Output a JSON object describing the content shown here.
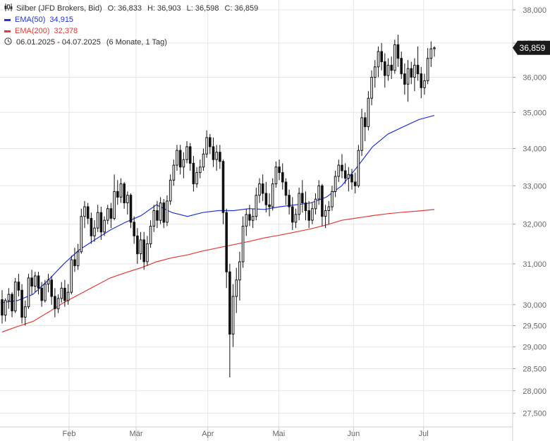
{
  "header": {
    "instrument": "Silber (JFD Brokers, Bid)",
    "open": "O: 36,833",
    "high": "H: 36,903",
    "low": "L: 36,598",
    "close": "C: 36,859",
    "ema50_label": "EMA(50)",
    "ema50_value": "34,915",
    "ema200_label": "EMA(200)",
    "ema200_value": "32,378",
    "period": "06.01.2025 - 04.07.2025",
    "period_detail": "(6 Monate, 1 Tag)",
    "candle_icon": "candlestick-icon",
    "clock_icon": "clock-icon"
  },
  "colors": {
    "candle": "#111111",
    "ema50": "#2236d8",
    "ema200": "#e53935",
    "grid": "#e6e6e6",
    "axis_text": "#666666",
    "last_price_bg": "#1a1a1a"
  },
  "chart_data": {
    "type": "candlestick",
    "y_scale": "log",
    "ylim": [
      27.2,
      38.3
    ],
    "y_ticks": [
      "27,500",
      "28,000",
      "28,500",
      "29,000",
      "29,500",
      "30,000",
      "31,000",
      "32,000",
      "33,000",
      "34,000",
      "35,000",
      "36,000",
      "37,000",
      "38,000"
    ],
    "x_tick_labels": [
      "Feb",
      "Mär",
      "Apr",
      "Mai",
      "Jun",
      "Jul"
    ],
    "last_price": "36,859",
    "grid": true,
    "candles": [
      [
        30.12,
        30.35,
        29.55,
        29.75
      ],
      [
        29.75,
        30.15,
        29.6,
        30.1
      ],
      [
        30.1,
        30.4,
        29.9,
        30.25
      ],
      [
        30.25,
        30.3,
        29.7,
        29.85
      ],
      [
        29.85,
        30.65,
        29.8,
        30.55
      ],
      [
        30.55,
        30.75,
        30.2,
        30.35
      ],
      [
        30.35,
        30.5,
        29.55,
        29.7
      ],
      [
        29.7,
        30.1,
        29.5,
        29.95
      ],
      [
        29.95,
        30.75,
        29.9,
        30.65
      ],
      [
        30.65,
        30.85,
        30.25,
        30.45
      ],
      [
        30.45,
        30.8,
        30.3,
        30.7
      ],
      [
        30.7,
        30.8,
        30.25,
        30.4
      ],
      [
        30.4,
        30.55,
        29.95,
        30.1
      ],
      [
        30.1,
        30.6,
        30.05,
        30.5
      ],
      [
        30.5,
        30.75,
        30.3,
        30.6
      ],
      [
        30.6,
        30.7,
        30.0,
        30.2
      ],
      [
        30.2,
        30.4,
        29.7,
        29.9
      ],
      [
        29.9,
        30.25,
        29.8,
        30.15
      ],
      [
        30.15,
        30.55,
        30.05,
        30.4
      ],
      [
        30.4,
        30.6,
        29.95,
        30.1
      ],
      [
        30.1,
        30.5,
        30.0,
        30.3
      ],
      [
        30.3,
        31.2,
        30.25,
        31.1
      ],
      [
        31.1,
        31.4,
        30.8,
        30.95
      ],
      [
        30.95,
        31.5,
        30.85,
        31.3
      ],
      [
        31.3,
        32.4,
        31.25,
        32.2
      ],
      [
        32.2,
        32.6,
        31.9,
        32.45
      ],
      [
        32.45,
        32.55,
        32.0,
        32.15
      ],
      [
        32.15,
        32.3,
        31.5,
        31.7
      ],
      [
        31.7,
        32.1,
        31.55,
        31.9
      ],
      [
        31.9,
        32.5,
        31.8,
        32.3
      ],
      [
        32.3,
        32.45,
        31.6,
        31.8
      ],
      [
        31.8,
        32.2,
        31.7,
        32.1
      ],
      [
        32.1,
        32.5,
        32.0,
        32.4
      ],
      [
        32.4,
        32.55,
        31.9,
        32.15
      ],
      [
        32.15,
        33.3,
        32.1,
        32.85
      ],
      [
        32.85,
        33.15,
        32.5,
        32.7
      ],
      [
        32.7,
        33.2,
        32.55,
        33.05
      ],
      [
        33.05,
        33.1,
        32.4,
        32.55
      ],
      [
        32.55,
        32.85,
        32.25,
        32.75
      ],
      [
        32.75,
        32.8,
        31.9,
        32.05
      ],
      [
        32.05,
        32.2,
        31.5,
        31.7
      ],
      [
        31.7,
        31.9,
        31.0,
        31.25
      ],
      [
        31.25,
        31.8,
        31.1,
        31.6
      ],
      [
        31.6,
        31.8,
        30.85,
        31.05
      ],
      [
        31.05,
        31.7,
        30.95,
        31.5
      ],
      [
        31.5,
        32.1,
        31.4,
        31.95
      ],
      [
        31.95,
        32.5,
        31.8,
        32.35
      ],
      [
        32.35,
        32.6,
        31.9,
        32.1
      ],
      [
        32.1,
        32.7,
        32.0,
        32.55
      ],
      [
        32.55,
        32.65,
        31.9,
        32.05
      ],
      [
        32.05,
        32.75,
        31.95,
        32.6
      ],
      [
        32.6,
        33.3,
        32.5,
        33.15
      ],
      [
        33.15,
        33.7,
        33.0,
        33.55
      ],
      [
        33.55,
        34.1,
        33.4,
        33.95
      ],
      [
        33.95,
        34.1,
        33.3,
        33.5
      ],
      [
        33.5,
        33.9,
        33.2,
        33.7
      ],
      [
        33.7,
        34.2,
        33.6,
        34.05
      ],
      [
        34.05,
        34.15,
        33.4,
        33.6
      ],
      [
        33.6,
        33.8,
        32.85,
        33.05
      ],
      [
        33.05,
        33.5,
        32.95,
        33.35
      ],
      [
        33.35,
        33.7,
        33.2,
        33.5
      ],
      [
        33.5,
        34.0,
        33.4,
        33.85
      ],
      [
        33.85,
        34.5,
        33.75,
        34.3
      ],
      [
        34.3,
        34.4,
        33.85,
        34.05
      ],
      [
        34.05,
        34.3,
        33.5,
        33.7
      ],
      [
        33.7,
        34.1,
        33.4,
        33.9
      ],
      [
        33.9,
        34.1,
        33.45,
        33.65
      ],
      [
        33.65,
        33.7,
        32.0,
        32.3
      ],
      [
        32.3,
        32.4,
        30.4,
        30.8
      ],
      [
        30.8,
        31.0,
        28.3,
        29.3
      ],
      [
        29.3,
        30.5,
        29.0,
        30.2
      ],
      [
        30.2,
        30.9,
        29.8,
        30.6
      ],
      [
        30.6,
        31.3,
        30.1,
        31.05
      ],
      [
        31.05,
        32.2,
        30.9,
        31.95
      ],
      [
        31.95,
        32.4,
        31.7,
        32.25
      ],
      [
        32.25,
        32.5,
        31.95,
        32.1
      ],
      [
        32.1,
        32.4,
        31.9,
        32.2
      ],
      [
        32.2,
        32.95,
        32.1,
        32.75
      ],
      [
        32.75,
        33.2,
        32.55,
        33.05
      ],
      [
        33.05,
        33.3,
        32.6,
        32.8
      ],
      [
        32.8,
        33.1,
        32.3,
        32.5
      ],
      [
        32.5,
        32.8,
        32.2,
        32.45
      ],
      [
        32.45,
        33.2,
        32.35,
        33.05
      ],
      [
        33.05,
        33.65,
        32.95,
        33.5
      ],
      [
        33.5,
        33.7,
        33.15,
        33.35
      ],
      [
        33.35,
        33.6,
        32.9,
        33.1
      ],
      [
        33.1,
        33.2,
        32.5,
        32.75
      ],
      [
        32.75,
        32.9,
        32.25,
        32.45
      ],
      [
        32.45,
        32.7,
        31.85,
        32.05
      ],
      [
        32.05,
        32.4,
        31.9,
        32.25
      ],
      [
        32.25,
        32.95,
        32.1,
        32.8
      ],
      [
        32.8,
        33.15,
        32.3,
        32.55
      ],
      [
        32.55,
        32.85,
        32.1,
        32.35
      ],
      [
        32.35,
        32.6,
        31.9,
        32.1
      ],
      [
        32.1,
        32.55,
        32.0,
        32.4
      ],
      [
        32.4,
        32.8,
        32.25,
        32.65
      ],
      [
        32.65,
        33.15,
        32.5,
        33.0
      ],
      [
        33.0,
        33.05,
        31.95,
        32.2
      ],
      [
        32.2,
        32.5,
        31.9,
        32.35
      ],
      [
        32.35,
        32.6,
        32.0,
        32.45
      ],
      [
        32.45,
        33.0,
        32.35,
        32.85
      ],
      [
        32.85,
        33.4,
        32.7,
        33.25
      ],
      [
        33.25,
        33.7,
        33.1,
        33.55
      ],
      [
        33.55,
        33.85,
        33.2,
        33.4
      ],
      [
        33.4,
        33.6,
        33.05,
        33.2
      ],
      [
        33.2,
        33.5,
        32.85,
        33.3
      ],
      [
        33.3,
        33.45,
        32.9,
        33.1
      ],
      [
        33.1,
        33.35,
        32.8,
        33.0
      ],
      [
        33.0,
        34.1,
        32.95,
        33.95
      ],
      [
        33.95,
        35.1,
        33.8,
        34.85
      ],
      [
        34.85,
        35.0,
        34.2,
        34.6
      ],
      [
        34.6,
        35.6,
        34.5,
        35.4
      ],
      [
        35.4,
        36.2,
        35.2,
        36.0
      ],
      [
        36.0,
        36.5,
        35.7,
        36.3
      ],
      [
        36.3,
        36.9,
        36.0,
        36.75
      ],
      [
        36.75,
        37.0,
        36.2,
        36.45
      ],
      [
        36.45,
        36.7,
        35.7,
        36.05
      ],
      [
        36.05,
        36.55,
        35.9,
        36.35
      ],
      [
        36.35,
        36.6,
        35.95,
        36.2
      ],
      [
        36.2,
        37.1,
        36.1,
        36.95
      ],
      [
        36.95,
        37.25,
        36.3,
        36.55
      ],
      [
        36.55,
        36.75,
        35.95,
        36.1
      ],
      [
        36.1,
        36.4,
        35.5,
        35.8
      ],
      [
        35.8,
        36.5,
        35.3,
        36.25
      ],
      [
        36.25,
        36.45,
        35.8,
        36.0
      ],
      [
        36.0,
        36.55,
        35.6,
        36.35
      ],
      [
        36.35,
        36.9,
        35.9,
        36.1
      ],
      [
        36.1,
        36.3,
        35.4,
        35.7
      ],
      [
        35.7,
        36.1,
        35.5,
        35.9
      ],
      [
        35.9,
        36.85,
        35.8,
        36.55
      ],
      [
        36.55,
        37.05,
        36.3,
        36.83
      ],
      [
        36.833,
        36.903,
        36.598,
        36.859
      ]
    ],
    "ema50": [
      30.05,
      30.1,
      30.25,
      30.6,
      31.0,
      31.35,
      31.6,
      31.85,
      32.05,
      32.22,
      32.5,
      32.3,
      32.2,
      32.3,
      32.35,
      32.35,
      32.4,
      32.38,
      32.45,
      32.5,
      32.55,
      32.7,
      33.0,
      33.5,
      34.05,
      34.4,
      34.6,
      34.8,
      34.915
    ],
    "ema200": [
      29.35,
      29.48,
      29.6,
      29.82,
      30.05,
      30.25,
      30.45,
      30.65,
      30.78,
      30.9,
      31.05,
      31.15,
      31.22,
      31.32,
      31.4,
      31.48,
      31.56,
      31.65,
      31.72,
      31.8,
      31.88,
      31.98,
      32.1,
      32.16,
      32.22,
      32.27,
      32.31,
      32.34,
      32.378
    ]
  }
}
